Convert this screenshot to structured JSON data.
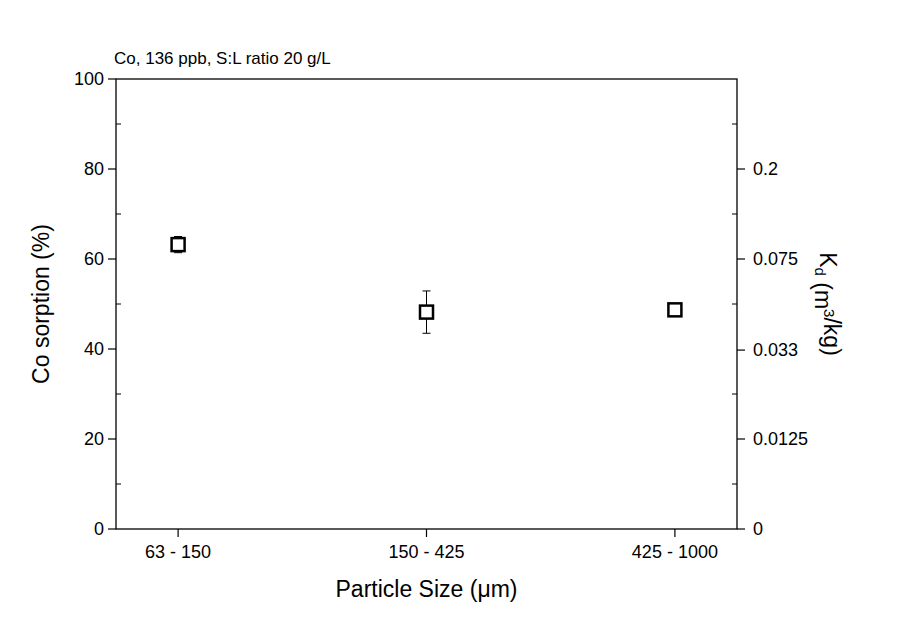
{
  "chart_data": {
    "type": "scatter",
    "title": "Co, 136 ppb, S:L ratio 20 g/L",
    "xlabel": "Particle Size (μm)",
    "ylabel": "Co sorption (%)",
    "y2label": [
      "K",
      {
        "sub": "d"
      },
      " (m",
      {
        "sup": "3"
      },
      "/kg)"
    ],
    "categories": [
      "63 - 150",
      "150 - 425",
      "425 - 1000"
    ],
    "values": [
      63.2,
      48.2,
      48.7
    ],
    "errors": [
      1.8,
      4.7,
      1.2
    ],
    "color": "#000000",
    "marker": "square",
    "ylim": [
      0,
      100
    ],
    "yticks": [
      0,
      20,
      40,
      60,
      80,
      100
    ],
    "solid_liquid_ratio": 20,
    "y2ticks": [
      0,
      0.0125,
      0.033,
      0.075,
      0.2
    ],
    "grid": false
  }
}
